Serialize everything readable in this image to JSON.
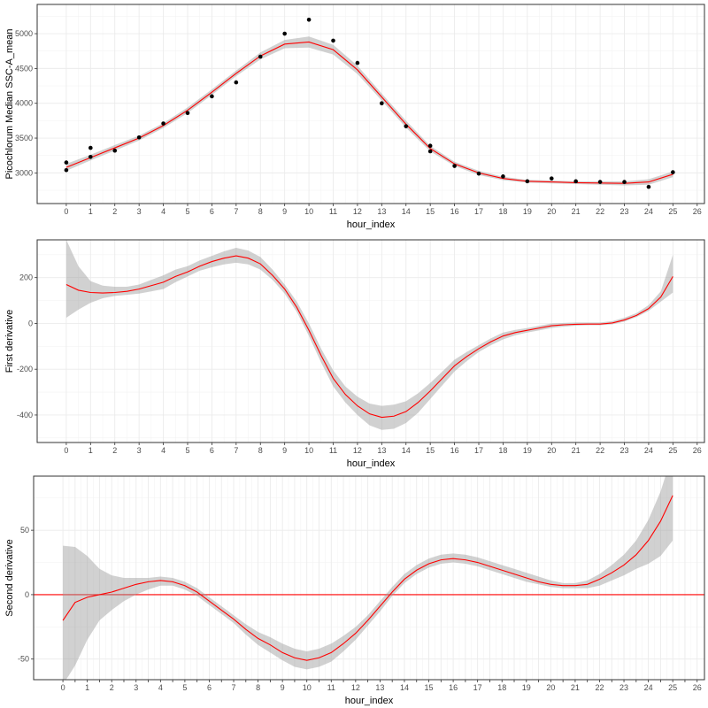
{
  "chart_data": [
    {
      "type": "line",
      "panel": "top",
      "xlabel": "hour_index",
      "ylabel": "Picochlorum Median SSC-A_mean",
      "xlim": [
        -1.2,
        26.3
      ],
      "ylim": [
        2560,
        5420
      ],
      "x_ticks": [
        0,
        1,
        2,
        3,
        4,
        5,
        6,
        7,
        8,
        9,
        10,
        11,
        12,
        13,
        14,
        15,
        16,
        17,
        18,
        19,
        20,
        21,
        22,
        23,
        24,
        25,
        26
      ],
      "y_ticks": [
        3000,
        3500,
        4000,
        4500,
        5000
      ],
      "y_tick_labels": [
        "3000",
        "3500",
        "4000",
        "4500",
        "5000"
      ],
      "grid": true,
      "points": {
        "x": [
          0,
          0,
          1,
          1,
          2,
          3,
          4,
          5,
          6,
          7,
          8,
          9,
          10,
          11,
          12,
          13,
          14,
          15,
          15,
          16,
          17,
          18,
          19,
          20,
          21,
          22,
          23,
          24,
          25
        ],
        "y": [
          3150,
          3040,
          3360,
          3230,
          3320,
          3510,
          3710,
          3860,
          4100,
          4300,
          4670,
          5000,
          5200,
          4900,
          4580,
          4000,
          3670,
          3390,
          3310,
          3100,
          2990,
          2950,
          2880,
          2920,
          2880,
          2870,
          2870,
          2800,
          3010
        ]
      },
      "series": [
        {
          "name": "",
          "color": "#ff0000",
          "x": [
            0,
            1,
            2,
            3,
            4,
            5,
            6,
            7,
            8,
            9,
            10,
            11,
            12,
            13,
            14,
            15,
            16,
            17,
            18,
            19,
            20,
            21,
            22,
            23,
            24,
            25
          ],
          "y": [
            3080,
            3220,
            3360,
            3500,
            3680,
            3900,
            4160,
            4430,
            4680,
            4850,
            4880,
            4770,
            4480,
            4090,
            3700,
            3350,
            3130,
            3000,
            2920,
            2880,
            2870,
            2860,
            2855,
            2850,
            2870,
            2980
          ],
          "band_lower": [
            3030,
            3180,
            3320,
            3465,
            3645,
            3860,
            4120,
            4390,
            4630,
            4790,
            4800,
            4700,
            4420,
            4040,
            3650,
            3310,
            3100,
            2970,
            2895,
            2860,
            2850,
            2840,
            2830,
            2820,
            2830,
            2940
          ],
          "band_upper": [
            3130,
            3260,
            3400,
            3535,
            3715,
            3940,
            4200,
            4470,
            4730,
            4910,
            4960,
            4840,
            4540,
            4140,
            3750,
            3390,
            3160,
            3030,
            2945,
            2900,
            2890,
            2880,
            2880,
            2880,
            2910,
            3020
          ]
        }
      ]
    },
    {
      "type": "line",
      "panel": "middle",
      "xlabel": "hour_index",
      "ylabel": "First derivative",
      "xlim": [
        -1.2,
        26.3
      ],
      "ylim": [
        -520,
        365
      ],
      "x_ticks": [
        0,
        1,
        2,
        3,
        4,
        5,
        6,
        7,
        8,
        9,
        10,
        11,
        12,
        13,
        14,
        15,
        16,
        17,
        18,
        19,
        20,
        21,
        22,
        23,
        24,
        25,
        26
      ],
      "y_ticks": [
        -400,
        -200,
        0,
        200
      ],
      "y_tick_labels": [
        "-400",
        "-200",
        "0",
        "200"
      ],
      "grid": true,
      "series": [
        {
          "name": "",
          "color": "#ff0000",
          "x": [
            0,
            0.5,
            1,
            1.5,
            2,
            2.5,
            3,
            3.5,
            4,
            4.5,
            5,
            5.5,
            6,
            6.5,
            7,
            7.5,
            8,
            8.5,
            9,
            9.5,
            10,
            10.5,
            11,
            11.5,
            12,
            12.5,
            13,
            13.5,
            14,
            14.5,
            15,
            15.5,
            16,
            16.5,
            17,
            17.5,
            18,
            18.5,
            19,
            19.5,
            20,
            20.5,
            21,
            21.5,
            22,
            22.5,
            23,
            23.5,
            24,
            24.5,
            25
          ],
          "y": [
            170,
            145,
            135,
            133,
            135,
            140,
            150,
            165,
            180,
            205,
            225,
            250,
            270,
            285,
            295,
            285,
            260,
            210,
            150,
            70,
            -30,
            -140,
            -240,
            -310,
            -360,
            -395,
            -410,
            -405,
            -385,
            -345,
            -295,
            -240,
            -185,
            -145,
            -110,
            -80,
            -55,
            -40,
            -30,
            -20,
            -10,
            -6,
            -4,
            -3,
            -3,
            2,
            15,
            35,
            65,
            115,
            205
          ],
          "band_lower": [
            25,
            60,
            90,
            110,
            120,
            125,
            130,
            140,
            150,
            180,
            205,
            230,
            245,
            258,
            265,
            258,
            235,
            190,
            130,
            50,
            -55,
            -170,
            -275,
            -345,
            -400,
            -445,
            -465,
            -460,
            -435,
            -390,
            -330,
            -270,
            -210,
            -165,
            -125,
            -95,
            -70,
            -52,
            -40,
            -30,
            -20,
            -14,
            -10,
            -8,
            -8,
            -4,
            8,
            28,
            55,
            95,
            135
          ],
          "band_upper": [
            365,
            250,
            185,
            165,
            160,
            160,
            170,
            190,
            210,
            235,
            250,
            275,
            295,
            315,
            330,
            318,
            290,
            235,
            170,
            95,
            0,
            -110,
            -205,
            -275,
            -320,
            -350,
            -360,
            -355,
            -340,
            -305,
            -260,
            -210,
            -158,
            -125,
            -95,
            -65,
            -40,
            -28,
            -20,
            -10,
            0,
            2,
            4,
            4,
            4,
            10,
            25,
            45,
            80,
            140,
            300
          ]
        }
      ]
    },
    {
      "type": "line",
      "panel": "bottom",
      "xlabel": "hour_index",
      "ylabel": "Second derivative",
      "xlim": [
        -1.2,
        26.3
      ],
      "ylim": [
        -66,
        92
      ],
      "x_ticks": [
        0,
        0.5,
        1,
        1.5,
        2,
        2.5,
        3,
        3.5,
        4,
        4.5,
        5,
        5.5,
        6,
        6.5,
        7,
        7.5,
        8,
        8.5,
        9,
        9.5,
        10,
        10.5,
        11,
        11.5,
        12,
        12.5,
        13,
        13.5,
        14,
        14.5,
        15,
        15.5,
        16,
        16.5,
        17,
        17.5,
        18,
        18.5,
        19,
        19.5,
        20,
        20.5,
        21,
        21.5,
        22,
        22.5,
        23,
        23.5,
        24,
        24.5,
        25,
        25.5,
        26
      ],
      "x_tick_labels": [
        "0",
        "",
        "1",
        "",
        "2",
        "",
        "3",
        "",
        "4",
        "",
        "5",
        "",
        "6",
        "",
        "7",
        "",
        "8",
        "",
        "9",
        "",
        "10",
        "",
        "11",
        "",
        "12",
        "",
        "13",
        "",
        "14",
        "",
        "15",
        "",
        "16",
        "",
        "17",
        "",
        "18",
        "",
        "19",
        "",
        "20",
        "",
        "21",
        "",
        "22",
        "",
        "23",
        "",
        "24",
        "",
        "25",
        "",
        "26"
      ],
      "y_ticks": [
        -50,
        0,
        50
      ],
      "y_tick_labels": [
        "-50",
        "0",
        "50"
      ],
      "grid": true,
      "hline": {
        "y": 0,
        "color": "#ff0000"
      },
      "series": [
        {
          "name": "",
          "color": "#ff0000",
          "x": [
            0,
            0.5,
            1,
            1.5,
            2,
            2.5,
            3,
            3.5,
            4,
            4.5,
            5,
            5.5,
            6,
            6.5,
            7,
            7.5,
            8,
            8.5,
            9,
            9.5,
            10,
            10.5,
            11,
            11.5,
            12,
            12.5,
            13,
            13.5,
            14,
            14.5,
            15,
            15.5,
            16,
            16.5,
            17,
            17.5,
            18,
            18.5,
            19,
            19.5,
            20,
            20.5,
            21,
            21.5,
            22,
            22.5,
            23,
            23.5,
            24,
            24.5,
            25
          ],
          "y": [
            -20,
            -6,
            -2,
            0,
            2,
            5,
            8,
            10,
            11,
            10,
            7,
            2,
            -5,
            -12,
            -19,
            -27,
            -34,
            -39,
            -45,
            -49,
            -51,
            -49,
            -45,
            -38,
            -30,
            -20,
            -9,
            2,
            12,
            19,
            24,
            27,
            28,
            27,
            25,
            22,
            19,
            16,
            13,
            10,
            8,
            7,
            7,
            8,
            12,
            17,
            23,
            31,
            42,
            57,
            77
          ],
          "band_lower": [
            -70,
            -55,
            -35,
            -20,
            -12,
            -5,
            0,
            4,
            7,
            7,
            4,
            -1,
            -8,
            -15,
            -22,
            -31,
            -39,
            -45,
            -51,
            -56,
            -58,
            -56,
            -52,
            -44,
            -35,
            -24,
            -13,
            -1,
            9,
            16,
            21,
            24,
            25,
            24,
            22,
            19,
            16,
            13,
            10,
            8,
            6,
            5,
            5,
            5,
            7,
            11,
            15,
            20,
            24,
            30,
            42
          ],
          "band_upper": [
            38,
            37,
            30,
            20,
            15,
            13,
            13,
            13,
            14,
            13,
            10,
            5,
            -2,
            -9,
            -16,
            -23,
            -29,
            -33,
            -38,
            -42,
            -44,
            -42,
            -38,
            -32,
            -25,
            -16,
            -5,
            6,
            16,
            23,
            28,
            31,
            32,
            31,
            29,
            26,
            23,
            20,
            17,
            14,
            11,
            9,
            9,
            11,
            16,
            23,
            31,
            42,
            58,
            80,
            110
          ]
        }
      ]
    }
  ]
}
